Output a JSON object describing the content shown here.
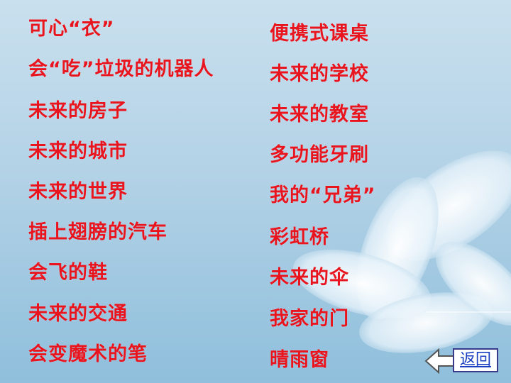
{
  "left_column": [
    "可心“衣”",
    "会“吃”垃圾的机器人",
    "未来的房子",
    "未来的城市",
    "未来的世界",
    "插上翅膀的汽车",
    "会飞的鞋",
    "未来的交通",
    "会变魔术的笔"
  ],
  "right_column": [
    "便携式课桌",
    "未来的学校",
    "未来的教室",
    "多功能牙刷",
    "我的“兄弟”",
    "彩虹桥",
    "未来的伞",
    "我家的门",
    "晴雨窗"
  ],
  "nav": {
    "back_label": "返回"
  },
  "colors": {
    "topic_text": "#e8141e",
    "link_text": "#1a3fc0",
    "background": "#b3d2e6"
  }
}
